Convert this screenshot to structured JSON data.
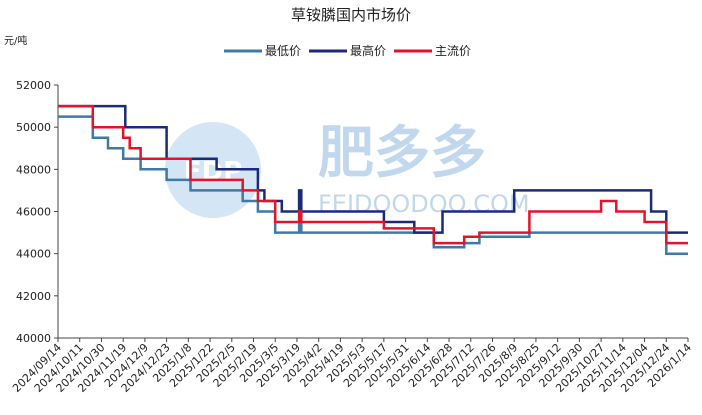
{
  "chart_data": {
    "type": "line",
    "title": "草铵膦国内市场价",
    "unit_label": "元/吨",
    "ylim": [
      40000,
      52000
    ],
    "y_ticks": [
      40000,
      42000,
      44000,
      46000,
      48000,
      50000,
      52000
    ],
    "x_tick_labels": [
      "2024/09/14",
      "2024/10/11",
      "2024/10/30",
      "2024/11/19",
      "2024/12/9",
      "2024/12/23",
      "2025/1/8",
      "2025/1/22",
      "2025/2/5",
      "2025/2/19",
      "2025/3/5",
      "2025/3/19",
      "2025/4/2",
      "2025/4/19",
      "2025/5/3",
      "2025/5/17",
      "2025/5/31",
      "2025/6/14",
      "2025/6/28",
      "2025/7/12",
      "2025/7/26",
      "2025/8/9",
      "2025/8/25",
      "2025/9/12",
      "2025/9/30",
      "2025/10/27",
      "2025/11/14",
      "2025/12/04",
      "2025/12/24",
      "2026/1/14"
    ],
    "x_range": [
      0,
      29
    ],
    "grid": false,
    "legend_position": "top-center",
    "watermark": {
      "logo": "FDP",
      "brand": "肥多多",
      "site": "FEIDOODOO.COM"
    },
    "series": [
      {
        "name": "最低价",
        "color": "#3d7aa7",
        "points": [
          [
            0,
            50500
          ],
          [
            1.6,
            50500
          ],
          [
            1.6,
            49500
          ],
          [
            2.3,
            49500
          ],
          [
            2.3,
            49000
          ],
          [
            3.0,
            49000
          ],
          [
            3.0,
            48500
          ],
          [
            3.8,
            48500
          ],
          [
            3.8,
            48000
          ],
          [
            5.0,
            48000
          ],
          [
            5.0,
            47500
          ],
          [
            6.1,
            47500
          ],
          [
            6.1,
            47000
          ],
          [
            8.5,
            47000
          ],
          [
            8.5,
            46500
          ],
          [
            9.2,
            46500
          ],
          [
            9.2,
            46000
          ],
          [
            10.0,
            46000
          ],
          [
            10.0,
            45000
          ],
          [
            11.1,
            45000
          ],
          [
            11.1,
            45500
          ],
          [
            11.2,
            45500
          ],
          [
            11.2,
            45000
          ],
          [
            17.3,
            45000
          ],
          [
            17.3,
            44300
          ],
          [
            18.7,
            44300
          ],
          [
            18.7,
            44500
          ],
          [
            19.4,
            44500
          ],
          [
            19.4,
            44800
          ],
          [
            21.7,
            44800
          ],
          [
            21.7,
            45000
          ],
          [
            28.0,
            45000
          ],
          [
            28.0,
            44000
          ],
          [
            29.0,
            44000
          ]
        ]
      },
      {
        "name": "最高价",
        "color": "#1c2a7c",
        "points": [
          [
            0,
            51000
          ],
          [
            3.1,
            51000
          ],
          [
            3.1,
            50000
          ],
          [
            5.0,
            50000
          ],
          [
            5.0,
            48500
          ],
          [
            7.3,
            48500
          ],
          [
            7.3,
            48000
          ],
          [
            9.2,
            48000
          ],
          [
            9.2,
            47000
          ],
          [
            9.5,
            47000
          ],
          [
            9.5,
            46500
          ],
          [
            10.3,
            46500
          ],
          [
            10.3,
            46000
          ],
          [
            11.1,
            46000
          ],
          [
            11.1,
            47000
          ],
          [
            11.2,
            47000
          ],
          [
            11.2,
            46000
          ],
          [
            15.0,
            46000
          ],
          [
            15.0,
            45500
          ],
          [
            16.4,
            45500
          ],
          [
            16.4,
            45000
          ],
          [
            17.7,
            45000
          ],
          [
            17.7,
            46000
          ],
          [
            21.0,
            46000
          ],
          [
            21.0,
            47000
          ],
          [
            27.3,
            47000
          ],
          [
            27.3,
            46000
          ],
          [
            28.0,
            46000
          ],
          [
            28.0,
            45000
          ],
          [
            29.0,
            45000
          ]
        ]
      },
      {
        "name": "主流价",
        "color": "#e0142a",
        "points": [
          [
            0,
            51000
          ],
          [
            1.6,
            51000
          ],
          [
            1.6,
            50000
          ],
          [
            3.0,
            50000
          ],
          [
            3.0,
            49500
          ],
          [
            3.3,
            49500
          ],
          [
            3.3,
            49000
          ],
          [
            3.8,
            49000
          ],
          [
            3.8,
            48500
          ],
          [
            6.1,
            48500
          ],
          [
            6.1,
            47500
          ],
          [
            8.5,
            47500
          ],
          [
            8.5,
            47000
          ],
          [
            9.2,
            47000
          ],
          [
            9.2,
            46500
          ],
          [
            10.0,
            46500
          ],
          [
            10.0,
            45500
          ],
          [
            11.1,
            45500
          ],
          [
            11.1,
            46000
          ],
          [
            11.2,
            46000
          ],
          [
            11.2,
            45500
          ],
          [
            15.0,
            45500
          ],
          [
            15.0,
            45200
          ],
          [
            17.3,
            45200
          ],
          [
            17.3,
            44500
          ],
          [
            18.7,
            44500
          ],
          [
            18.7,
            44800
          ],
          [
            19.4,
            44800
          ],
          [
            19.4,
            45000
          ],
          [
            21.7,
            45000
          ],
          [
            21.7,
            46000
          ],
          [
            25.0,
            46000
          ],
          [
            25.0,
            46500
          ],
          [
            25.7,
            46500
          ],
          [
            25.7,
            46000
          ],
          [
            27.0,
            46000
          ],
          [
            27.0,
            45500
          ],
          [
            28.0,
            45500
          ],
          [
            28.0,
            44500
          ],
          [
            29.0,
            44500
          ]
        ]
      }
    ]
  }
}
